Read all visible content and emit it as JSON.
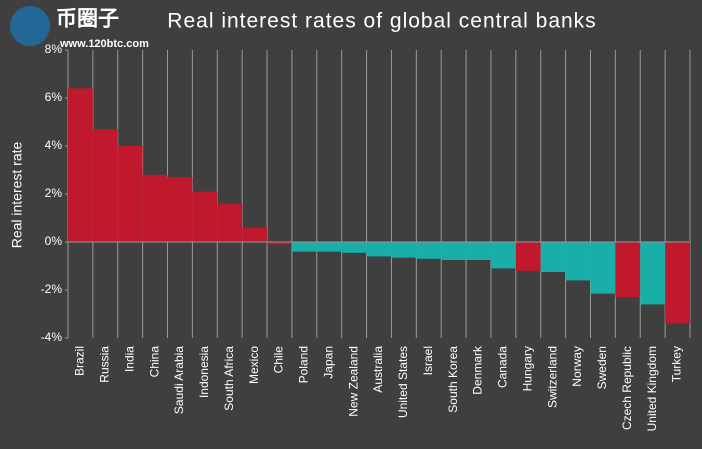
{
  "watermark": {
    "brand": "币圈子",
    "url": "www.120btc.com"
  },
  "chart_data": {
    "type": "bar",
    "title": "Real interest rates of global central banks",
    "y_label": "Real interest rate",
    "categories": [
      "Brazil",
      "Russia",
      "India",
      "China",
      "Saudi Arabia",
      "Indonesia",
      "South Africa",
      "Mexico",
      "Chile",
      "Poland",
      "Japan",
      "New Zealand",
      "Australia",
      "United States",
      "Israel",
      "South Korea",
      "Denmark",
      "Canada",
      "Hungary",
      "Switzerland",
      "Norway",
      "Sweden",
      "Czech Republic",
      "United Kingdom",
      "Turkey"
    ],
    "values": [
      6.4,
      4.7,
      4.0,
      2.8,
      2.7,
      2.1,
      1.6,
      0.6,
      -0.1,
      -0.4,
      -0.4,
      -0.45,
      -0.6,
      -0.65,
      -0.7,
      -0.75,
      -0.75,
      -1.1,
      -1.2,
      -1.25,
      -1.6,
      -2.15,
      -2.3,
      -2.6,
      -3.4
    ],
    "colors": [
      "#c0182d",
      "#c0182d",
      "#c0182d",
      "#c0182d",
      "#c0182d",
      "#c0182d",
      "#c0182d",
      "#c0182d",
      "#c0182d",
      "#1aaea9",
      "#1aaea9",
      "#1aaea9",
      "#1aaea9",
      "#1aaea9",
      "#1aaea9",
      "#1aaea9",
      "#1aaea9",
      "#1aaea9",
      "#c0182d",
      "#1aaea9",
      "#1aaea9",
      "#1aaea9",
      "#c0182d",
      "#1aaea9",
      "#c0182d"
    ],
    "ylim": [
      -4,
      8
    ],
    "yticks": [
      {
        "value": -4,
        "label": "-4%"
      },
      {
        "value": -2,
        "label": "-2%"
      },
      {
        "value": 0,
        "label": "0%"
      },
      {
        "value": 2,
        "label": "2%"
      },
      {
        "value": 4,
        "label": "4%"
      },
      {
        "value": 6,
        "label": "6%"
      },
      {
        "value": 8,
        "label": "8%"
      }
    ]
  }
}
